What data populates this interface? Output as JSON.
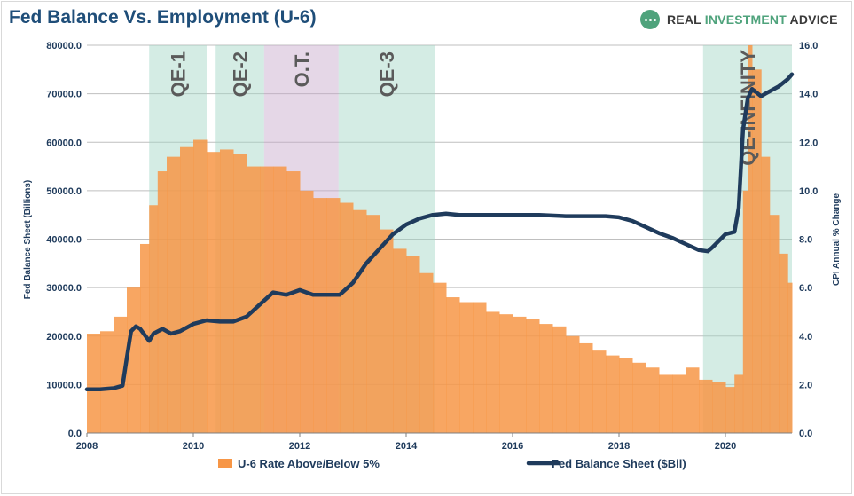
{
  "header": {
    "title": "Fed Balance Vs. Employment (U-6)",
    "brand_part1": "REAL ",
    "brand_part2": "INVESTMENT",
    "brand_part3": " ADVICE"
  },
  "chart_data": {
    "type": "bar",
    "title": "Fed Balance Vs. Employment (U-6)",
    "ylabel_left": "Fed Balance Sheet (Billions)",
    "ylabel_right": "CPI Annual % Change",
    "xlim": [
      2008.0,
      2021.25
    ],
    "ylim_left": [
      0,
      80000
    ],
    "ylim_right": [
      0,
      16
    ],
    "yticks_left": [
      "0.0",
      "10000.0",
      "20000.0",
      "30000.0",
      "40000.0",
      "50000.0",
      "60000.0",
      "70000.0",
      "80000.0"
    ],
    "yticks_right": [
      "0.0",
      "2.0",
      "4.0",
      "6.0",
      "8.0",
      "10.0",
      "12.0",
      "14.0",
      "16.0"
    ],
    "xticks": [
      "2008",
      "2010",
      "2012",
      "2014",
      "2016",
      "2018",
      "2020"
    ],
    "grid": true,
    "legend_position": "bottom",
    "colors": {
      "bars": "#f79646",
      "line": "#1f3b5c",
      "qe": "#9fd4c3",
      "qt": "#c6a6c9",
      "grid": "#bfbfbf",
      "title": "#1f4e79"
    },
    "shaded_regions": [
      {
        "label": "QE-1",
        "start": 2009.17,
        "end": 2010.25,
        "kind": "qe"
      },
      {
        "label": "QE-2",
        "start": 2010.42,
        "end": 2011.33,
        "kind": "qe"
      },
      {
        "label": "O.T.",
        "start": 2011.33,
        "end": 2012.73,
        "kind": "qt"
      },
      {
        "label": "QE-3",
        "start": 2012.73,
        "end": 2014.54,
        "kind": "qe"
      },
      {
        "label": "QE-INFINITY",
        "start": 2019.58,
        "end": 2021.25,
        "kind": "qe"
      }
    ],
    "series": [
      {
        "name": "U-6 Rate Above/Below 5%",
        "kind": "bar",
        "axis": "left",
        "x": [
          2008.0,
          2008.25,
          2008.5,
          2008.75,
          2009.0,
          2009.17,
          2009.33,
          2009.5,
          2009.75,
          2010.0,
          2010.25,
          2010.5,
          2010.75,
          2011.0,
          2011.25,
          2011.5,
          2011.75,
          2012.0,
          2012.25,
          2012.5,
          2012.75,
          2013.0,
          2013.25,
          2013.5,
          2013.75,
          2014.0,
          2014.25,
          2014.5,
          2014.75,
          2015.0,
          2015.25,
          2015.5,
          2015.75,
          2016.0,
          2016.25,
          2016.5,
          2016.75,
          2017.0,
          2017.25,
          2017.5,
          2017.75,
          2018.0,
          2018.25,
          2018.5,
          2018.75,
          2019.0,
          2019.25,
          2019.5,
          2019.75,
          2020.0,
          2020.17,
          2020.33,
          2020.42,
          2020.5,
          2020.67,
          2020.83,
          2021.0,
          2021.17
        ],
        "values": [
          20500,
          21000,
          24000,
          30000,
          39000,
          47000,
          54000,
          57000,
          59000,
          60500,
          58000,
          58500,
          57500,
          55000,
          55000,
          55000,
          54000,
          50000,
          48500,
          48500,
          47500,
          46000,
          45000,
          42000,
          38000,
          36500,
          33000,
          31000,
          28000,
          27000,
          27000,
          25000,
          24500,
          24000,
          23500,
          22500,
          22000,
          20000,
          18500,
          17000,
          16000,
          15500,
          14500,
          13500,
          12000,
          12000,
          13500,
          11000,
          10500,
          9500,
          12000,
          50000,
          80000,
          75000,
          57000,
          45000,
          37000,
          31000
        ]
      },
      {
        "name": "Fed Balance Sheet ($Bil)",
        "kind": "line",
        "axis": "right",
        "x": [
          2008.0,
          2008.25,
          2008.5,
          2008.67,
          2008.75,
          2008.83,
          2008.92,
          2009.0,
          2009.17,
          2009.25,
          2009.42,
          2009.58,
          2009.75,
          2010.0,
          2010.25,
          2010.5,
          2010.75,
          2011.0,
          2011.25,
          2011.5,
          2011.75,
          2012.0,
          2012.25,
          2012.5,
          2012.75,
          2013.0,
          2013.25,
          2013.5,
          2013.75,
          2014.0,
          2014.25,
          2014.5,
          2014.75,
          2015.0,
          2015.5,
          2016.0,
          2016.5,
          2017.0,
          2017.5,
          2017.75,
          2018.0,
          2018.25,
          2018.5,
          2018.75,
          2019.0,
          2019.25,
          2019.5,
          2019.67,
          2019.75,
          2020.0,
          2020.17,
          2020.25,
          2020.33,
          2020.42,
          2020.5,
          2020.67,
          2020.75,
          2020.83,
          2021.0,
          2021.17,
          2021.25
        ],
        "values": [
          1.8,
          1.8,
          1.85,
          1.95,
          3.1,
          4.2,
          4.4,
          4.3,
          3.8,
          4.1,
          4.3,
          4.1,
          4.2,
          4.5,
          4.65,
          4.6,
          4.6,
          4.8,
          5.3,
          5.8,
          5.7,
          5.9,
          5.7,
          5.7,
          5.7,
          6.2,
          7.0,
          7.6,
          8.2,
          8.6,
          8.85,
          9.0,
          9.05,
          9.0,
          9.0,
          9.0,
          9.0,
          8.95,
          8.95,
          8.95,
          8.9,
          8.75,
          8.5,
          8.25,
          8.05,
          7.8,
          7.55,
          7.5,
          7.65,
          8.2,
          8.3,
          9.3,
          12.5,
          13.8,
          14.2,
          13.9,
          14.0,
          14.1,
          14.3,
          14.6,
          14.8
        ]
      }
    ]
  }
}
